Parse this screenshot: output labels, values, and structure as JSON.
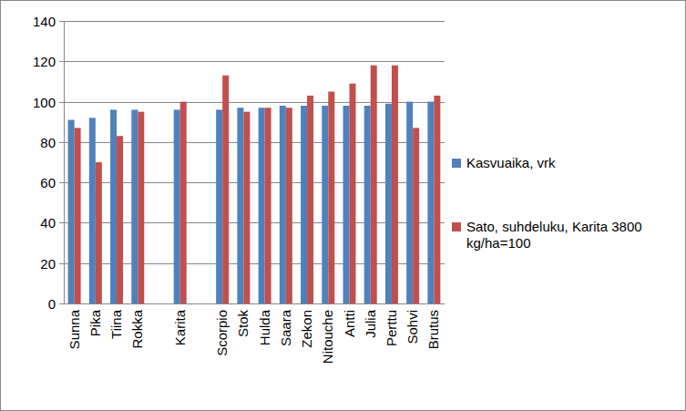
{
  "chart_data": {
    "type": "bar",
    "categories": [
      "Sunna",
      "Pika",
      "Tiina",
      "Rokka",
      null,
      "Karita",
      null,
      "Scorpio",
      "Stok",
      "Hulda",
      "Saara",
      "Zekon",
      "Nitouche",
      "Antti",
      "Julia",
      "Perttu",
      "Sohvi",
      "Brutus"
    ],
    "series": [
      {
        "name": "Kasvuaika, vrk",
        "color": "#4f81bd",
        "values": [
          91,
          92,
          96,
          96,
          null,
          96,
          null,
          96,
          97,
          97,
          98,
          98,
          98,
          98,
          98,
          99,
          100,
          100
        ]
      },
      {
        "name": "Sato, suhdeluku, Karita 3800 kg/ha=100",
        "color": "#c0504d",
        "values": [
          87,
          70,
          83,
          95,
          null,
          100,
          null,
          113,
          95,
          97,
          97,
          103,
          105,
          109,
          118,
          118,
          87,
          103
        ]
      }
    ],
    "ylim": [
      0,
      140
    ],
    "yticks": [
      0,
      20,
      40,
      60,
      80,
      100,
      120,
      140
    ],
    "grid": true,
    "legend": "right"
  }
}
